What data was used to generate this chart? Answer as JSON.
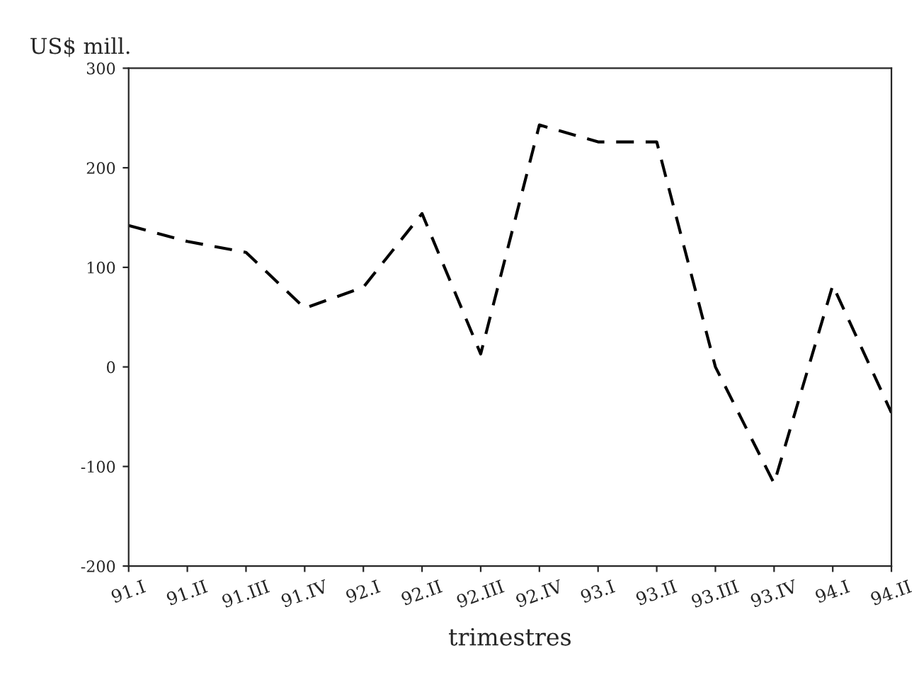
{
  "chart_data": {
    "type": "line",
    "ylabel": "US$ mill.",
    "xlabel": "trimestres",
    "categories": [
      "91.I",
      "91.II",
      "91.III",
      "91.IV",
      "92.I",
      "92.II",
      "92.III",
      "92.IV",
      "93.I",
      "93.II",
      "93.III",
      "93.IV",
      "94.I",
      "94.II"
    ],
    "series": [
      {
        "color": "#000000",
        "values": [
          142,
          126,
          115,
          59,
          80,
          154,
          13,
          243,
          226,
          226,
          0,
          -117,
          82,
          -46
        ]
      }
    ],
    "ylim": [
      -200,
      300
    ],
    "yticks": [
      -200,
      -100,
      0,
      100,
      200,
      300
    ],
    "grid": false,
    "line_style": "dashed",
    "marker": "none"
  }
}
